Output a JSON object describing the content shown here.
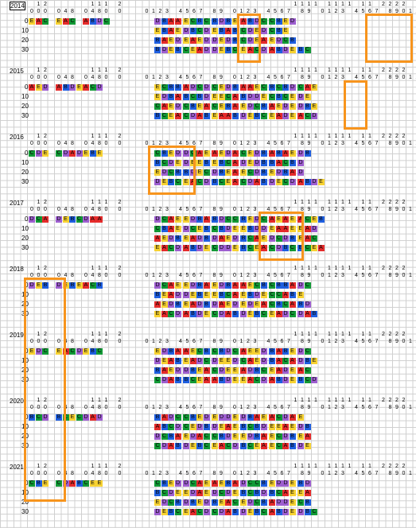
{
  "colors": {
    "A": "#e52b2b",
    "B": "#1f5fe0",
    "C": "#129a36",
    "D": "#9e5fd0",
    "E": "#f7d232",
    "highlight": "#f7941d"
  },
  "row_labels": [
    "0",
    "10",
    "20",
    "30"
  ],
  "header_top": [
    "",
    "1",
    "2",
    "",
    "",
    "",
    "",
    "",
    "",
    "1",
    "1",
    "1",
    "",
    "2",
    "",
    "",
    "",
    "",
    "",
    "",
    "",
    "",
    "",
    "",
    "",
    "",
    "",
    "",
    "",
    "",
    "",
    "",
    "",
    "",
    "",
    "",
    "",
    "",
    "",
    "1",
    "1",
    "1",
    "1",
    "",
    "1",
    "1",
    "1",
    "1",
    "",
    "1",
    "1",
    "",
    "2",
    "2",
    "2",
    "2"
  ],
  "header_bottom": [
    "0",
    "0",
    "0",
    "",
    "0",
    "4",
    "8",
    "",
    "0",
    "4",
    "8",
    "0",
    "",
    "0",
    "",
    "",
    "",
    "0",
    "1",
    "2",
    "3",
    "",
    "4",
    "5",
    "6",
    "7",
    "",
    "8",
    "9",
    "",
    "0",
    "1",
    "2",
    "3",
    "",
    "4",
    "5",
    "6",
    "7",
    "",
    "8",
    "9",
    "",
    "0",
    "1",
    "2",
    "3",
    "",
    "4",
    "5",
    "6",
    "7",
    "",
    "8",
    "9",
    "0",
    "1",
    "2",
    "3"
  ],
  "years": [
    {
      "label": "2014",
      "prefix": "EAC EAC ABDC",
      "rows": [
        "DBAAECBCBDBEABDCCBED",
        "EBAEDBCDEBABCDEDCBE",
        "BAEDEAEDDEDBCDEAEDCB",
        "BDEBCEADDEBCEACDABDEBC"
      ]
    },
    {
      "label": "2015",
      "prefix": "AED ABDEACD",
      "rows": [
        "ECBBADCDCEDBAAECBCBDCAE",
        "EDBABCBDEECABDDECBCEDE",
        "CAEDCBEACEBAEDCBAEDEDBE",
        "BCEACDABEAABDEBCEADEACD"
      ]
    },
    {
      "label": "2016",
      "prefix": "CDE CDADEBE",
      "rows": [
        "CBEDDCAEAEDACEDBABAEDB",
        "BCDEDEEBEBCADEDBBACBD",
        "EDCBBDECDBEAECDBEDBAD",
        "DEBCEACDBCEACDABDECDABDE"
      ]
    },
    {
      "label": "2017",
      "prefix": "DCA DEBCDAA",
      "rows": [
        "DCAEEDBABDCCBEDCAEAEACEB",
        "CBAEDCEBCBDEEBDDEAAEEAD",
        "AEDBEADBDAEDBCAEDCDBEAC",
        "EACDABDECDDEBCEACDBCBCEA"
      ]
    },
    {
      "label": "2018",
      "prefix": "DEB DEBEACB",
      "rows": [
        "DCAEEDBAEDBAAECBCBBADC",
        "BEADDEBEEBCAEBDECCABE",
        "AEDBEADBDAEDEDEACBCABD",
        "EACDABDECDABDEBCEADCDAB"
      ]
    },
    {
      "label": "2019",
      "prefix": "EDC EACDEBC",
      "rows": [
        "EDBAAECBCBDCAEEDBABEDC",
        "DEABEADCDEEDCAEDBACADBE",
        "BAEDDBEACDEEADBCEADEAC",
        "CDABBCEAABDEEACDABDEBCD"
      ]
    },
    {
      "label": "2020",
      "prefix": "BCD BCECDAD",
      "rows": [
        "BADCCBEDEDDEDBAEACDAE",
        "ABCDCEDBDEAEBCBDEEAEDB",
        "DCBAEDACCBDEEDBAECDBEA",
        "CDABDEBCEACDBCEAECABDE"
      ]
    },
    {
      "label": "2021",
      "prefix": "CBE CDABCEE",
      "rows": [
        "CBEDDCAEAEBADCCBEDDEBD",
        "BCDEEDAEDCDEBCBDBCAEEA",
        "EDCBDBEDBEACEDCBADDECB",
        "DEBCEACDCDABDEBCABDEDBC"
      ]
    }
  ]
}
